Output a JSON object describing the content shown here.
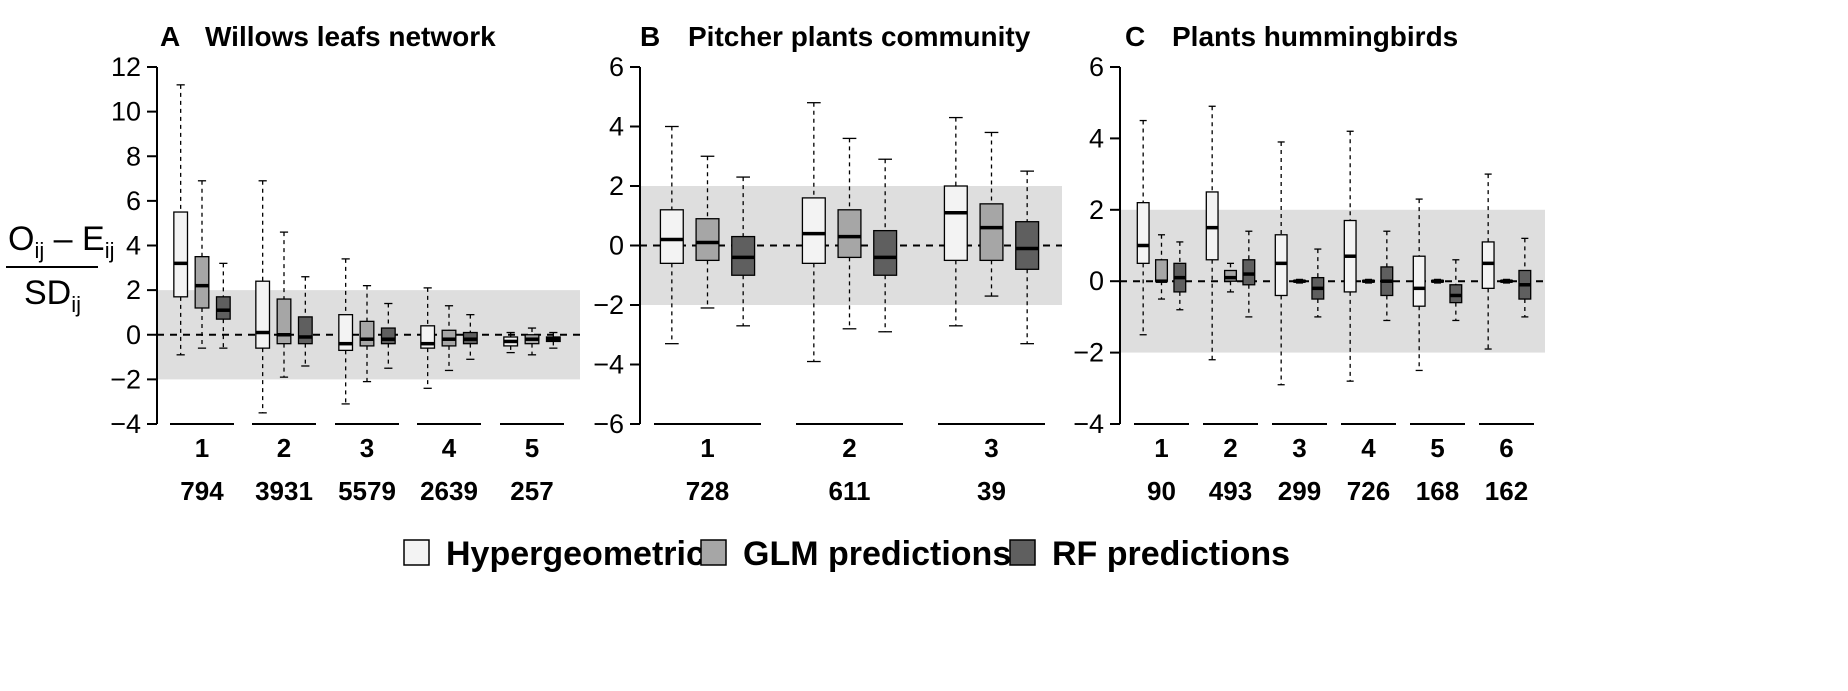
{
  "colors": {
    "hypergeometric": "#f3f3f3",
    "glm": "#a6a6a6",
    "rf": "#5f5f5f",
    "band": "#dedede"
  },
  "ylabel": {
    "numerator_main": "O",
    "numerator_sub": "ij",
    "minus": " – ",
    "numerator_main2": "E",
    "numerator_sub2": "ij",
    "denominator_main": "SD",
    "denominator_sub": "ij"
  },
  "legend": [
    {
      "key": "hypergeometric",
      "label": "Hypergeometric"
    },
    {
      "key": "glm",
      "label": "GLM predictions"
    },
    {
      "key": "rf",
      "label": "RF predictions"
    }
  ],
  "chart_data": [
    {
      "type": "box",
      "letter": "A",
      "title": "Willows leafs network",
      "ylim": [
        -4,
        12
      ],
      "yticks": [
        -4,
        -2,
        0,
        2,
        4,
        6,
        8,
        10,
        12
      ],
      "band": [
        -2,
        2
      ],
      "reference_line": 0,
      "categories": [
        "1",
        "2",
        "3",
        "4",
        "5"
      ],
      "counts": [
        "794",
        "3931",
        "5579",
        "2639",
        "257"
      ],
      "series": [
        {
          "name": "Hypergeometric",
          "key": "hypergeometric",
          "boxes": [
            {
              "min": -0.9,
              "q1": 1.7,
              "median": 3.2,
              "q3": 5.5,
              "max": 11.2
            },
            {
              "min": -3.5,
              "q1": -0.6,
              "median": 0.1,
              "q3": 2.4,
              "max": 6.9
            },
            {
              "min": -3.1,
              "q1": -0.7,
              "median": -0.4,
              "q3": 0.9,
              "max": 3.4
            },
            {
              "min": -2.4,
              "q1": -0.6,
              "median": -0.4,
              "q3": 0.4,
              "max": 2.1
            },
            {
              "min": -0.8,
              "q1": -0.5,
              "median": -0.3,
              "q3": -0.1,
              "max": 0.1
            }
          ]
        },
        {
          "name": "GLM predictions",
          "key": "glm",
          "boxes": [
            {
              "min": -0.6,
              "q1": 1.2,
              "median": 2.2,
              "q3": 3.5,
              "max": 6.9
            },
            {
              "min": -1.9,
              "q1": -0.4,
              "median": 0.0,
              "q3": 1.6,
              "max": 4.6
            },
            {
              "min": -2.1,
              "q1": -0.5,
              "median": -0.2,
              "q3": 0.6,
              "max": 2.2
            },
            {
              "min": -1.6,
              "q1": -0.5,
              "median": -0.2,
              "q3": 0.2,
              "max": 1.3
            },
            {
              "min": -0.9,
              "q1": -0.4,
              "median": -0.2,
              "q3": 0.0,
              "max": 0.3
            }
          ]
        },
        {
          "name": "RF predictions",
          "key": "rf",
          "boxes": [
            {
              "min": -0.6,
              "q1": 0.7,
              "median": 1.1,
              "q3": 1.7,
              "max": 3.2
            },
            {
              "min": -1.4,
              "q1": -0.4,
              "median": -0.1,
              "q3": 0.8,
              "max": 2.6
            },
            {
              "min": -1.5,
              "q1": -0.4,
              "median": -0.2,
              "q3": 0.3,
              "max": 1.4
            },
            {
              "min": -1.1,
              "q1": -0.4,
              "median": -0.2,
              "q3": 0.1,
              "max": 0.9
            },
            {
              "min": -0.6,
              "q1": -0.3,
              "median": -0.2,
              "q3": -0.1,
              "max": 0.1
            }
          ]
        }
      ]
    },
    {
      "type": "box",
      "letter": "B",
      "title": "Pitcher plants community",
      "ylim": [
        -6,
        6
      ],
      "yticks": [
        -6,
        -4,
        -2,
        0,
        2,
        4,
        6
      ],
      "band": [
        -2,
        2
      ],
      "reference_line": 0,
      "categories": [
        "1",
        "2",
        "3"
      ],
      "counts": [
        "728",
        "611",
        "39"
      ],
      "series": [
        {
          "name": "Hypergeometric",
          "key": "hypergeometric",
          "boxes": [
            {
              "min": -3.3,
              "q1": -0.6,
              "median": 0.2,
              "q3": 1.2,
              "max": 4.0
            },
            {
              "min": -3.9,
              "q1": -0.6,
              "median": 0.4,
              "q3": 1.6,
              "max": 4.8
            },
            {
              "min": -2.7,
              "q1": -0.5,
              "median": 1.1,
              "q3": 2.0,
              "max": 4.3
            }
          ]
        },
        {
          "name": "GLM predictions",
          "key": "glm",
          "boxes": [
            {
              "min": -2.1,
              "q1": -0.5,
              "median": 0.1,
              "q3": 0.9,
              "max": 3.0
            },
            {
              "min": -2.8,
              "q1": -0.4,
              "median": 0.3,
              "q3": 1.2,
              "max": 3.6
            },
            {
              "min": -1.7,
              "q1": -0.5,
              "median": 0.6,
              "q3": 1.4,
              "max": 3.8
            }
          ]
        },
        {
          "name": "RF predictions",
          "key": "rf",
          "boxes": [
            {
              "min": -2.7,
              "q1": -1.0,
              "median": -0.4,
              "q3": 0.3,
              "max": 2.3
            },
            {
              "min": -2.9,
              "q1": -1.0,
              "median": -0.4,
              "q3": 0.5,
              "max": 2.9
            },
            {
              "min": -3.3,
              "q1": -0.8,
              "median": -0.1,
              "q3": 0.8,
              "max": 2.5
            }
          ]
        }
      ]
    },
    {
      "type": "box",
      "letter": "C",
      "title": "Plants hummingbirds",
      "ylim": [
        -4,
        6
      ],
      "yticks": [
        -4,
        -2,
        0,
        2,
        4,
        6
      ],
      "band": [
        -2,
        2
      ],
      "reference_line": 0,
      "categories": [
        "1",
        "2",
        "3",
        "4",
        "5",
        "6"
      ],
      "counts": [
        "90",
        "493",
        "299",
        "726",
        "168",
        "162"
      ],
      "series": [
        {
          "name": "Hypergeometric",
          "key": "hypergeometric",
          "boxes": [
            {
              "min": -1.5,
              "q1": 0.5,
              "median": 1.0,
              "q3": 2.2,
              "max": 4.5
            },
            {
              "min": -2.2,
              "q1": 0.6,
              "median": 1.5,
              "q3": 2.5,
              "max": 4.9
            },
            {
              "min": -2.9,
              "q1": -0.4,
              "median": 0.5,
              "q3": 1.3,
              "max": 3.9
            },
            {
              "min": -2.8,
              "q1": -0.3,
              "median": 0.7,
              "q3": 1.7,
              "max": 4.2
            },
            {
              "min": -2.5,
              "q1": -0.7,
              "median": -0.2,
              "q3": 0.7,
              "max": 2.3
            },
            {
              "min": -1.9,
              "q1": -0.2,
              "median": 0.5,
              "q3": 1.1,
              "max": 3.0
            }
          ]
        },
        {
          "name": "GLM predictions",
          "key": "glm",
          "boxes": [
            {
              "min": -0.5,
              "q1": 0.0,
              "median": 0.0,
              "q3": 0.6,
              "max": 1.3
            },
            {
              "min": -0.3,
              "q1": 0.0,
              "median": 0.1,
              "q3": 0.3,
              "max": 0.5
            },
            {
              "min": -0.05,
              "q1": -0.02,
              "median": 0.0,
              "q3": 0.02,
              "max": 0.05
            },
            {
              "min": -0.05,
              "q1": -0.02,
              "median": 0.0,
              "q3": 0.02,
              "max": 0.05
            },
            {
              "min": -0.05,
              "q1": -0.02,
              "median": 0.0,
              "q3": 0.02,
              "max": 0.05
            },
            {
              "min": -0.05,
              "q1": -0.02,
              "median": 0.0,
              "q3": 0.02,
              "max": 0.05
            }
          ]
        },
        {
          "name": "RF predictions",
          "key": "rf",
          "boxes": [
            {
              "min": -0.8,
              "q1": -0.3,
              "median": 0.1,
              "q3": 0.5,
              "max": 1.1
            },
            {
              "min": -1.0,
              "q1": -0.1,
              "median": 0.2,
              "q3": 0.6,
              "max": 1.4
            },
            {
              "min": -1.0,
              "q1": -0.5,
              "median": -0.2,
              "q3": 0.1,
              "max": 0.9
            },
            {
              "min": -1.1,
              "q1": -0.4,
              "median": 0.0,
              "q3": 0.4,
              "max": 1.4
            },
            {
              "min": -1.1,
              "q1": -0.6,
              "median": -0.4,
              "q3": -0.1,
              "max": 0.6
            },
            {
              "min": -1.0,
              "q1": -0.5,
              "median": -0.1,
              "q3": 0.3,
              "max": 1.2
            }
          ]
        }
      ]
    }
  ]
}
